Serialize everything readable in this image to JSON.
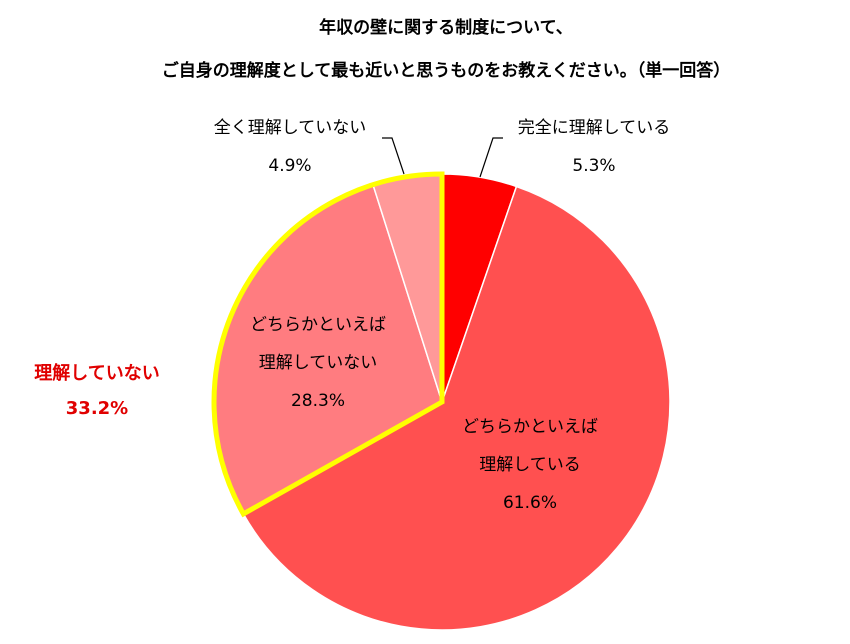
{
  "chart_data": {
    "type": "pie",
    "title_lines": [
      "年収の壁に関する制度について、",
      "ご自身の理解度として最も近いと思うものをお教えください。（単一回答）"
    ],
    "slices": [
      {
        "label_lines": [
          "完全に理解している"
        ],
        "value": 5.3,
        "value_label": "5.3%",
        "color": "#FF0000"
      },
      {
        "label_lines": [
          "どちらかといえば",
          "理解している"
        ],
        "value": 61.6,
        "value_label": "61.6%",
        "color": "#FF5050"
      },
      {
        "label_lines": [
          "どちらかといえば",
          "理解していない"
        ],
        "value": 28.3,
        "value_label": "28.3%",
        "color": "#FF7C80"
      },
      {
        "label_lines": [
          "全く理解していない"
        ],
        "value": 4.9,
        "value_label": "4.9%",
        "color": "#FF9999"
      }
    ],
    "highlight_group": {
      "label": "理解していない",
      "value_label": "33.2%",
      "members": [
        "どちらかといえば理解していない",
        "全く理解していない"
      ],
      "outline_color": "#FFFF00",
      "text_color": "#E00000"
    }
  }
}
